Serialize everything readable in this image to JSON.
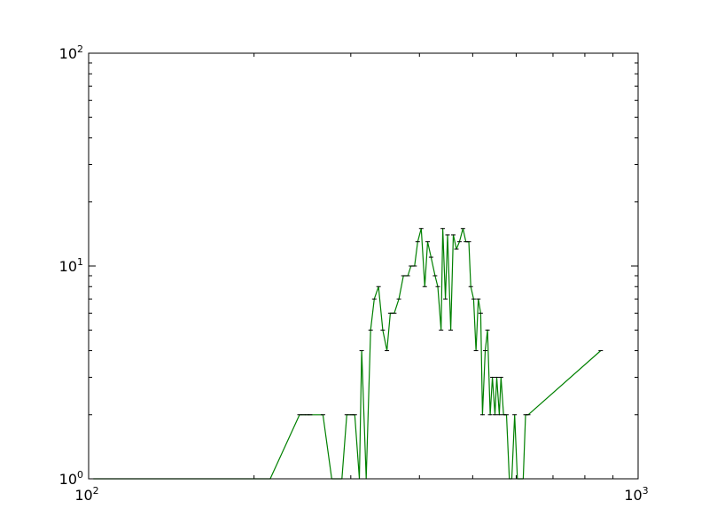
{
  "chart_data": {
    "type": "line",
    "title": "",
    "xlabel": "",
    "ylabel": "",
    "xscale": "log",
    "yscale": "log",
    "xlim": [
      100,
      1000
    ],
    "ylim": [
      1,
      100
    ],
    "grid": false,
    "legend": "none",
    "x_tick_labels": [
      {
        "base": "10",
        "exp": "2",
        "value": 100
      },
      {
        "base": "10",
        "exp": "3",
        "value": 1000
      }
    ],
    "y_tick_labels": [
      {
        "base": "10",
        "exp": "0",
        "value": 1
      },
      {
        "base": "10",
        "exp": "1",
        "value": 10
      },
      {
        "base": "10",
        "exp": "2",
        "value": 100
      }
    ],
    "series": [
      {
        "color": "#008000",
        "points": [
          [
            102,
            1
          ],
          [
            104,
            1
          ],
          [
            106,
            1
          ],
          [
            108,
            1
          ],
          [
            207,
            1
          ],
          [
            210,
            1
          ],
          [
            214,
            1
          ],
          [
            242,
            2
          ],
          [
            246,
            2
          ],
          [
            250,
            2
          ],
          [
            253,
            2
          ],
          [
            267,
            2
          ],
          [
            277,
            1
          ],
          [
            283,
            1
          ],
          [
            289,
            1
          ],
          [
            295,
            2
          ],
          [
            301,
            2
          ],
          [
            305,
            2
          ],
          [
            311,
            1
          ],
          [
            314,
            4
          ],
          [
            320,
            1
          ],
          [
            326,
            5
          ],
          [
            331,
            7
          ],
          [
            337,
            8
          ],
          [
            343,
            5
          ],
          [
            349,
            4
          ],
          [
            354,
            6
          ],
          [
            360,
            6
          ],
          [
            367,
            7
          ],
          [
            374,
            9
          ],
          [
            381,
            9
          ],
          [
            386,
            10
          ],
          [
            392,
            10
          ],
          [
            397,
            13
          ],
          [
            403,
            15
          ],
          [
            409,
            8
          ],
          [
            414,
            13
          ],
          [
            420,
            11
          ],
          [
            427,
            9
          ],
          [
            432,
            8
          ],
          [
            438,
            5
          ],
          [
            441,
            15
          ],
          [
            446,
            7
          ],
          [
            450,
            14
          ],
          [
            456,
            5
          ],
          [
            461,
            14
          ],
          [
            467,
            12
          ],
          [
            473,
            13
          ],
          [
            480,
            15
          ],
          [
            486,
            13
          ],
          [
            492,
            13
          ],
          [
            496,
            8
          ],
          [
            502,
            7
          ],
          [
            507,
            4
          ],
          [
            512,
            7
          ],
          [
            517,
            6
          ],
          [
            521,
            2
          ],
          [
            527,
            4
          ],
          [
            532,
            5
          ],
          [
            538,
            2
          ],
          [
            543,
            3
          ],
          [
            549,
            2
          ],
          [
            553,
            3
          ],
          [
            559,
            2
          ],
          [
            563,
            3
          ],
          [
            569,
            2
          ],
          [
            576,
            2
          ],
          [
            583,
            1
          ],
          [
            589,
            1
          ],
          [
            596,
            2
          ],
          [
            603,
            1
          ],
          [
            611,
            1
          ],
          [
            618,
            1
          ],
          [
            624,
            2
          ],
          [
            631,
            2
          ],
          [
            855,
            4
          ]
        ]
      }
    ]
  }
}
